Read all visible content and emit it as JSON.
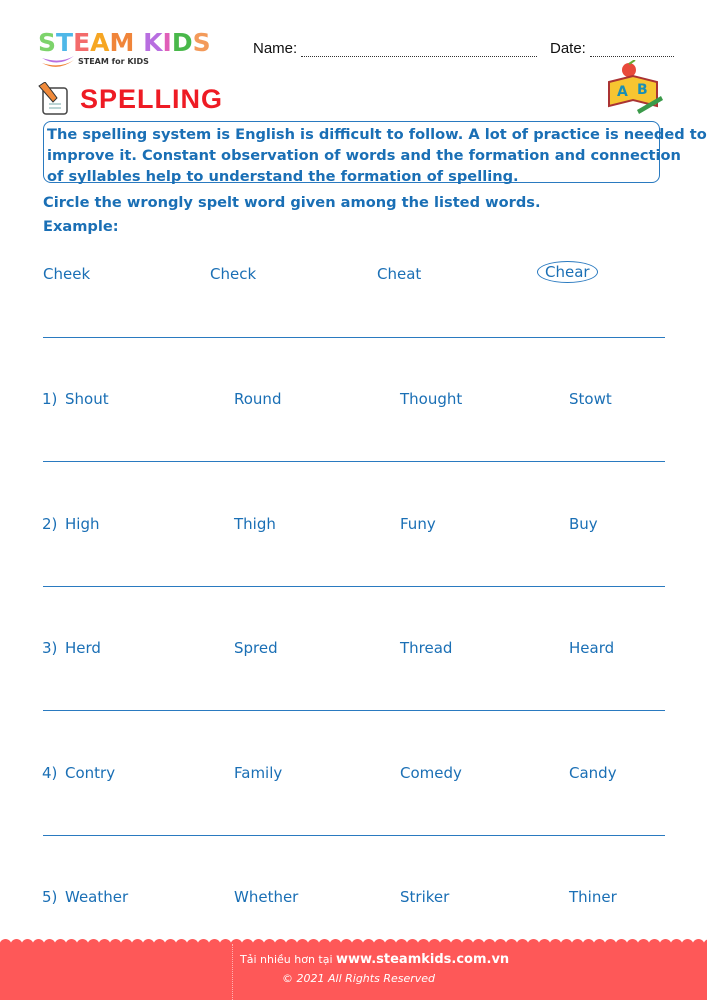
{
  "header": {
    "logo_text": "STEAM KIDS",
    "logo_subtitle": "STEAM for KIDS",
    "name_label": "Name:",
    "date_label": "Date:"
  },
  "title": "SPELLING",
  "intro": [
    "The spelling system is English is difficult to follow. A lot of practice is needed to",
    "improve it. Constant observation of words and the formation and connection",
    "of syllables help to understand the formation of spelling."
  ],
  "instruction": "Circle the wrongly spelt word given among the listed words.",
  "example_label": "Example:",
  "example": {
    "words": [
      "Cheek",
      "Check",
      "Cheat",
      "Chear"
    ],
    "circled_index": 3
  },
  "questions": [
    {
      "number": "1)",
      "words": [
        "Shout",
        "Round",
        "Thought",
        "Stowt"
      ]
    },
    {
      "number": "2)",
      "words": [
        "High",
        "Thigh",
        "Funy",
        "Buy"
      ]
    },
    {
      "number": "3)",
      "words": [
        "Herd",
        "Spred",
        "Thread",
        "Heard"
      ]
    },
    {
      "number": "4)",
      "words": [
        "Contry",
        "Family",
        "Comedy",
        "Candy"
      ]
    },
    {
      "number": "5)",
      "words": [
        "Weather",
        "Whether",
        "Striker",
        "Thiner"
      ]
    }
  ],
  "footer": {
    "more_text": "Tải nhiều hơn tại",
    "website": "www.steamkids.com.vn",
    "copyright": "©  2021 All Rights Reserved"
  },
  "colors": {
    "text_blue": "#1a6fb5",
    "title_red": "#ee1b24",
    "footer_red": "#fe5858"
  }
}
